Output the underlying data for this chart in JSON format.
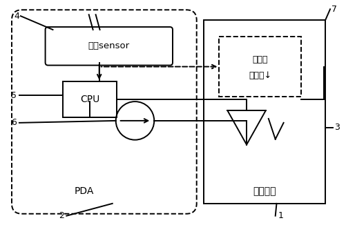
{
  "bg_color": "#ffffff",
  "line_color": "#000000",
  "fig_width": 5.01,
  "fig_height": 3.26,
  "pda_label": "PDA",
  "scan_label": "扫码模组",
  "sensor_label": "感光sensor",
  "cpu_label": "CPU",
  "feedback_line1": "信号反",
  "feedback_line2": "馈模块↓"
}
